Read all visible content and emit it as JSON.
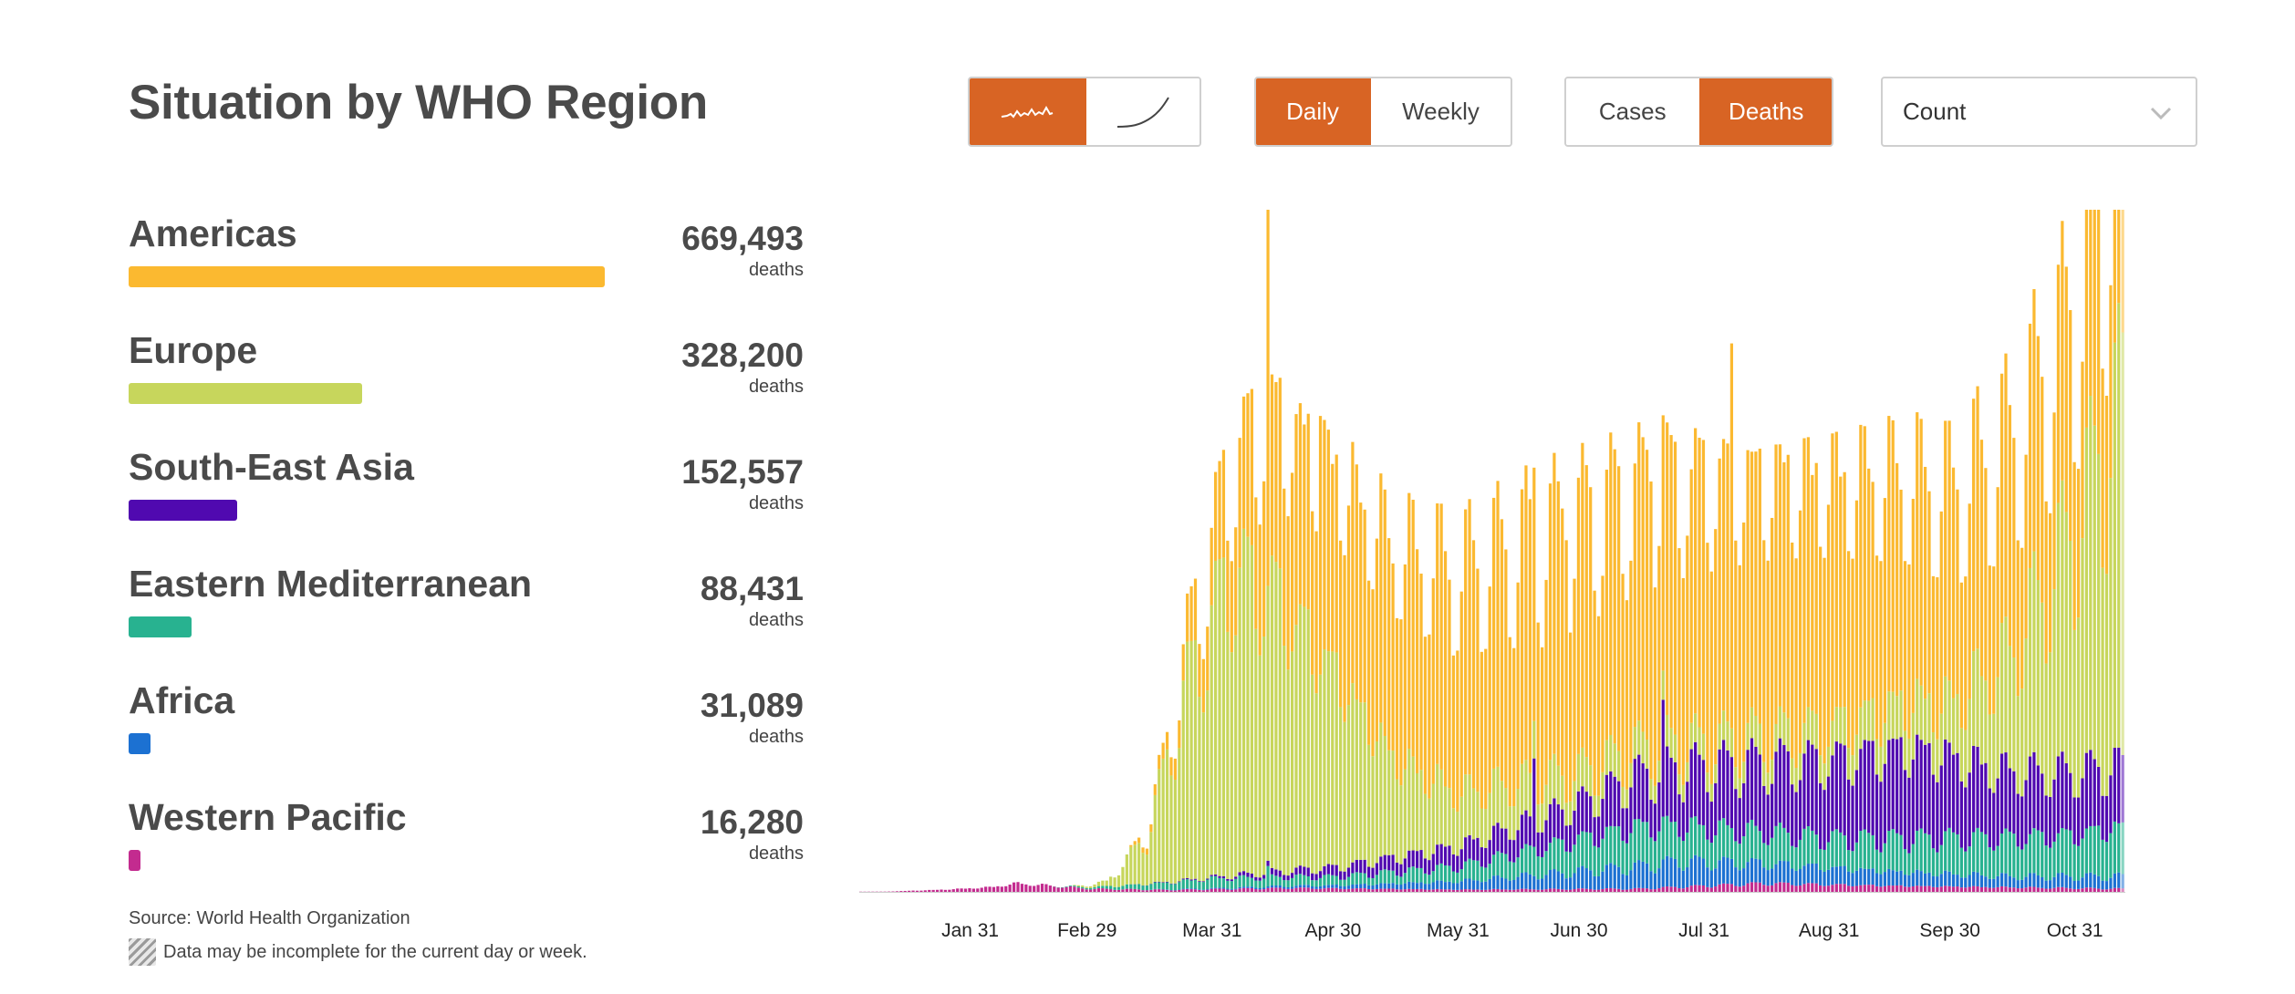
{
  "title": "Situation by WHO Region",
  "controls": {
    "shape_buttons": [
      {
        "icon": "daily-wave-icon",
        "active": true
      },
      {
        "icon": "cumulative-curve-icon",
        "active": false
      }
    ],
    "period_buttons": [
      {
        "label": "Daily",
        "active": true
      },
      {
        "label": "Weekly",
        "active": false
      }
    ],
    "metric_buttons": [
      {
        "label": "Cases",
        "active": false
      },
      {
        "label": "Deaths",
        "active": true
      }
    ],
    "scale_dropdown": {
      "selected": "Count"
    }
  },
  "regions": [
    {
      "name": "Americas",
      "value": "669,493",
      "unit": "deaths",
      "color": "#FBB930"
    },
    {
      "name": "Europe",
      "value": "328,200",
      "unit": "deaths",
      "color": "#C7D65C"
    },
    {
      "name": "South-East Asia",
      "value": "152,557",
      "unit": "deaths",
      "color": "#5009B0"
    },
    {
      "name": "Eastern Mediterranean",
      "value": "88,431",
      "unit": "deaths",
      "color": "#28B290"
    },
    {
      "name": "Africa",
      "value": "31,089",
      "unit": "deaths",
      "color": "#1C71D2"
    },
    {
      "name": "Western Pacific",
      "value": "16,280",
      "unit": "deaths",
      "color": "#C32B8F"
    }
  ],
  "footer": {
    "source": "Source: World Health Organization",
    "note": "Data may be incomplete for the current day or week."
  },
  "chart_data": {
    "type": "bar",
    "stacked": true,
    "x_start": "2020-01-04",
    "x_end": "2020-11-12",
    "x_ticks": [
      "Jan 31",
      "Feb 29",
      "Mar 31",
      "Apr 30",
      "May 31",
      "Jun 30",
      "Jul 31",
      "Aug 31",
      "Sep 30",
      "Oct 31"
    ],
    "y_max": 9000,
    "grid": false,
    "series_order_bottom_to_top": [
      "Western Pacific",
      "Africa",
      "Eastern Mediterranean",
      "South-East Asia",
      "Europe",
      "Americas"
    ],
    "series": [
      {
        "name": "Western Pacific",
        "color": "#C32B8F",
        "keyframes": [
          [
            "2020-01-10",
            3
          ],
          [
            "2020-01-25",
            30
          ],
          [
            "2020-02-05",
            60
          ],
          [
            "2020-02-12",
            110
          ],
          [
            "2020-02-20",
            80
          ],
          [
            "2020-03-01",
            40
          ],
          [
            "2020-03-20",
            25
          ],
          [
            "2020-04-20",
            50
          ],
          [
            "2020-06-01",
            30
          ],
          [
            "2020-07-15",
            40
          ],
          [
            "2020-08-15",
            110
          ],
          [
            "2020-09-15",
            80
          ],
          [
            "2020-11-12",
            40
          ]
        ]
      },
      {
        "name": "Africa",
        "color": "#1C71D2",
        "keyframes": [
          [
            "2020-03-10",
            0
          ],
          [
            "2020-04-01",
            10
          ],
          [
            "2020-05-01",
            40
          ],
          [
            "2020-06-01",
            110
          ],
          [
            "2020-07-01",
            230
          ],
          [
            "2020-07-25",
            330
          ],
          [
            "2020-08-15",
            260
          ],
          [
            "2020-09-15",
            190
          ],
          [
            "2020-10-15",
            140
          ],
          [
            "2020-11-12",
            160
          ]
        ]
      },
      {
        "name": "Eastern Mediterranean",
        "color": "#28B290",
        "keyframes": [
          [
            "2020-02-20",
            0
          ],
          [
            "2020-03-01",
            20
          ],
          [
            "2020-03-31",
            130
          ],
          [
            "2020-04-30",
            110
          ],
          [
            "2020-05-31",
            190
          ],
          [
            "2020-06-30",
            420
          ],
          [
            "2020-07-15",
            520
          ],
          [
            "2020-07-31",
            440
          ],
          [
            "2020-08-31",
            380
          ],
          [
            "2020-09-30",
            460
          ],
          [
            "2020-10-31",
            540
          ],
          [
            "2020-11-12",
            650
          ]
        ]
      },
      {
        "name": "South-East Asia",
        "color": "#5009B0",
        "keyframes": [
          [
            "2020-03-10",
            0
          ],
          [
            "2020-03-31",
            15
          ],
          [
            "2020-04-30",
            120
          ],
          [
            "2020-05-31",
            260
          ],
          [
            "2020-06-30",
            460
          ],
          [
            "2020-07-15",
            660
          ],
          [
            "2020-07-31",
            780
          ],
          [
            "2020-08-31",
            1000
          ],
          [
            "2020-09-20",
            1180
          ],
          [
            "2020-10-15",
            850
          ],
          [
            "2020-11-12",
            780
          ]
        ]
      },
      {
        "name": "Europe",
        "color": "#C7D65C",
        "keyframes": [
          [
            "2020-02-25",
            0
          ],
          [
            "2020-03-05",
            60
          ],
          [
            "2020-03-15",
            600
          ],
          [
            "2020-03-25",
            2500
          ],
          [
            "2020-04-05",
            3900
          ],
          [
            "2020-04-15",
            3600
          ],
          [
            "2020-04-30",
            2600
          ],
          [
            "2020-05-15",
            1300
          ],
          [
            "2020-05-31",
            700
          ],
          [
            "2020-06-30",
            400
          ],
          [
            "2020-07-31",
            300
          ],
          [
            "2020-08-31",
            420
          ],
          [
            "2020-09-30",
            700
          ],
          [
            "2020-10-15",
            1500
          ],
          [
            "2020-10-31",
            3100
          ],
          [
            "2020-11-12",
            4700
          ]
        ]
      },
      {
        "name": "Americas",
        "color": "#FBB930",
        "keyframes": [
          [
            "2020-03-10",
            0
          ],
          [
            "2020-03-20",
            200
          ],
          [
            "2020-03-31",
            1000
          ],
          [
            "2020-04-15",
            2300
          ],
          [
            "2020-04-30",
            2600
          ],
          [
            "2020-05-31",
            2800
          ],
          [
            "2020-06-30",
            3200
          ],
          [
            "2020-07-31",
            3400
          ],
          [
            "2020-08-31",
            3200
          ],
          [
            "2020-09-30",
            2700
          ],
          [
            "2020-10-31",
            2700
          ],
          [
            "2020-11-12",
            3400
          ]
        ]
      }
    ]
  }
}
